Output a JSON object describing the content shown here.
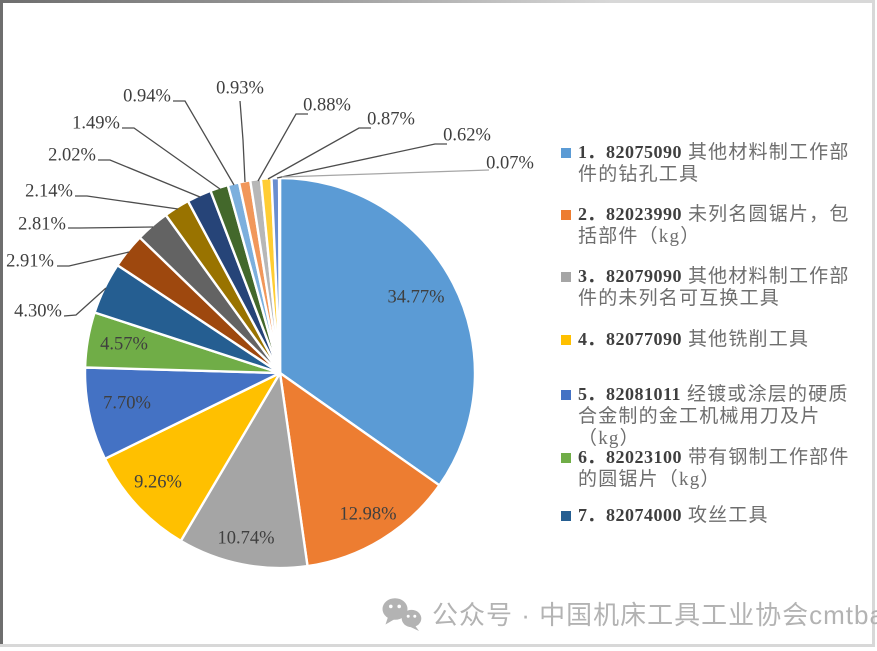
{
  "chart_data": {
    "type": "pie",
    "title": "",
    "legend_position": "right",
    "direction": "clockwise",
    "start_angle_deg": 0,
    "slices": [
      {
        "value_pct": 34.77,
        "display": "34.77%",
        "color": "#5B9BD5"
      },
      {
        "value_pct": 12.98,
        "display": "12.98%",
        "color": "#ED7D31"
      },
      {
        "value_pct": 10.74,
        "display": "10.74%",
        "color": "#A5A5A5"
      },
      {
        "value_pct": 9.26,
        "display": "9.26%",
        "color": "#FFC000"
      },
      {
        "value_pct": 7.7,
        "display": "7.70%",
        "color": "#4472C4"
      },
      {
        "value_pct": 4.57,
        "display": "4.57%",
        "color": "#70AD47"
      },
      {
        "value_pct": 4.3,
        "display": "4.30%",
        "color": "#255E91"
      },
      {
        "value_pct": 2.91,
        "display": "2.91%",
        "color": "#9E480E"
      },
      {
        "value_pct": 2.81,
        "display": "2.81%",
        "color": "#636363"
      },
      {
        "value_pct": 2.14,
        "display": "2.14%",
        "color": "#997300"
      },
      {
        "value_pct": 2.02,
        "display": "2.02%",
        "color": "#264478"
      },
      {
        "value_pct": 1.49,
        "display": "1.49%",
        "color": "#43682B"
      },
      {
        "value_pct": 0.94,
        "display": "0.94%",
        "color": "#7CAFDD"
      },
      {
        "value_pct": 0.93,
        "display": "0.93%",
        "color": "#F1975A"
      },
      {
        "value_pct": 0.88,
        "display": "0.88%",
        "color": "#B7B7B7"
      },
      {
        "value_pct": 0.87,
        "display": "0.87%",
        "color": "#FFCD33"
      },
      {
        "value_pct": 0.62,
        "display": "0.62%",
        "color": "#698ED0"
      },
      {
        "value_pct": 0.07,
        "display": "0.07%",
        "color": "#8CC168"
      }
    ]
  },
  "legend": {
    "items": [
      {
        "color": "#5B9BD5",
        "code": "1．82075090",
        "desc_lines": [
          "其他材料制工作部",
          "件的钻孔工具"
        ]
      },
      {
        "color": "#ED7D31",
        "code": "2．82023990",
        "desc_lines": [
          "未列名圆锯片，包",
          "括部件（kg）"
        ]
      },
      {
        "color": "#A5A5A5",
        "code": "3．82079090",
        "desc_lines": [
          "其他材料制工作部",
          "件的未列名可互换工具"
        ]
      },
      {
        "color": "#FFC000",
        "code": "4．82077090",
        "desc_lines": [
          "其他铣削工具"
        ]
      },
      {
        "color": "#4472C4",
        "code": "5．82081011",
        "desc_lines": [
          "经镀或涂层的硬质",
          "合金制的金工机械用刀及片",
          "（kg）"
        ]
      },
      {
        "color": "#70AD47",
        "code": "6．82023100",
        "desc_lines": [
          "带有钢制工作部件",
          "的圆锯片（kg）"
        ]
      },
      {
        "color": "#255E91",
        "code": "7．82074000",
        "desc_lines": [
          "攻丝工具"
        ]
      }
    ]
  },
  "watermark": {
    "icon": "wechat-icon",
    "text": "公众号 · 中国机床工具工业协会cmtba"
  }
}
